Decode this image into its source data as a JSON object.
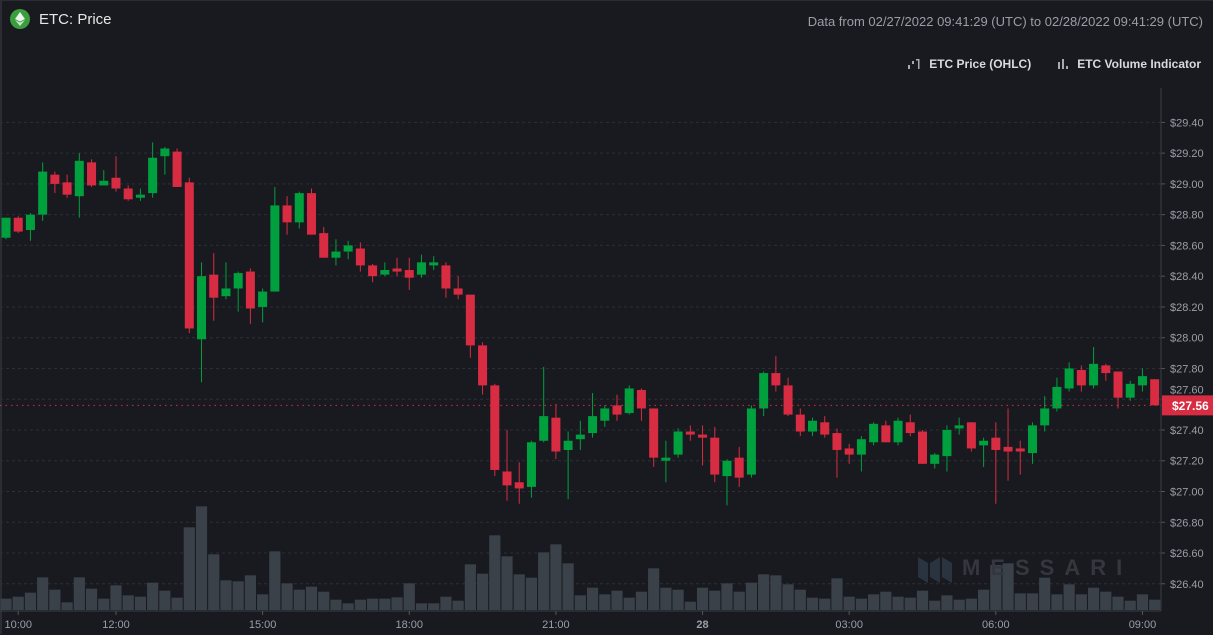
{
  "header": {
    "title": "ETC: Price",
    "range_text": "Data from 02/27/2022 09:41:29 (UTC) to 02/28/2022 09:41:29 (UTC)",
    "coin_icon": "ethereum-classic-icon"
  },
  "legend": [
    {
      "label": "ETC Price (OHLC)",
      "icon": "candlestick-icon"
    },
    {
      "label": "ETC Volume Indicator",
      "icon": "bar-chart-icon"
    }
  ],
  "watermark": "MESSARI",
  "colors": {
    "up": "#00a03e",
    "down": "#d72c41",
    "volume": "#3a4149",
    "background": "#181a20",
    "last_price": "#d72c41"
  },
  "chart_data": {
    "type": "candlestick",
    "title": "ETC: Price",
    "ylim": [
      26.3,
      29.5
    ],
    "yticks": [
      "$29.40",
      "$29.20",
      "$29.00",
      "$28.80",
      "$28.60",
      "$28.40",
      "$28.20",
      "$28.00",
      "$27.80",
      "$27.60",
      "$27.40",
      "$27.20",
      "$27.00",
      "$26.80",
      "$26.60",
      "$26.40"
    ],
    "xticks": [
      {
        "label": "10:00",
        "t": "10:00"
      },
      {
        "label": "12:00",
        "t": "12:00"
      },
      {
        "label": "15:00",
        "t": "15:00"
      },
      {
        "label": "18:00",
        "t": "18:00"
      },
      {
        "label": "21:00",
        "t": "21:00"
      },
      {
        "label": "28",
        "t": "00:00"
      },
      {
        "label": "03:00",
        "t": "03:00"
      },
      {
        "label": "06:00",
        "t": "06:00"
      },
      {
        "label": "09:00",
        "t": "09:00"
      }
    ],
    "grid": true,
    "last_price": "$27.56",
    "volume_units": "relative",
    "candles_fields": [
      "time",
      "open",
      "high",
      "low",
      "close",
      "volume"
    ],
    "candles": [
      [
        "09:45",
        28.65,
        28.78,
        28.64,
        28.78,
        34
      ],
      [
        "10:00",
        28.78,
        28.79,
        28.68,
        28.69,
        40
      ],
      [
        "10:15",
        28.7,
        28.81,
        28.63,
        28.8,
        52
      ],
      [
        "10:30",
        28.8,
        29.14,
        28.76,
        29.08,
        98
      ],
      [
        "10:45",
        29.06,
        29.08,
        28.94,
        29.0,
        61
      ],
      [
        "11:00",
        29.01,
        29.06,
        28.91,
        28.93,
        23
      ],
      [
        "11:15",
        28.92,
        29.2,
        28.78,
        29.15,
        98
      ],
      [
        "11:30",
        29.14,
        29.16,
        28.98,
        28.99,
        64
      ],
      [
        "11:45",
        28.99,
        29.09,
        28.99,
        29.02,
        34
      ],
      [
        "12:00",
        29.04,
        29.18,
        28.95,
        28.97,
        74
      ],
      [
        "12:15",
        28.97,
        28.99,
        28.89,
        28.9,
        44
      ],
      [
        "12:30",
        28.91,
        28.97,
        28.89,
        28.93,
        40
      ],
      [
        "12:45",
        28.94,
        29.27,
        28.91,
        29.17,
        82
      ],
      [
        "13:00",
        29.18,
        29.24,
        29.06,
        29.23,
        58
      ],
      [
        "13:15",
        29.21,
        29.23,
        28.98,
        28.98,
        37
      ],
      [
        "13:30",
        29.01,
        29.04,
        28.03,
        28.06,
        248
      ],
      [
        "13:45",
        27.99,
        28.49,
        27.71,
        28.4,
        311
      ],
      [
        "14:00",
        28.41,
        28.55,
        28.11,
        28.26,
        167
      ],
      [
        "14:15",
        28.27,
        28.49,
        28.25,
        28.32,
        89
      ],
      [
        "14:30",
        28.32,
        28.43,
        28.17,
        28.42,
        86
      ],
      [
        "14:45",
        28.43,
        28.45,
        28.09,
        28.19,
        104
      ],
      [
        "15:00",
        28.2,
        28.32,
        28.1,
        28.3,
        47
      ],
      [
        "15:15",
        28.3,
        28.98,
        28.3,
        28.86,
        176
      ],
      [
        "15:30",
        28.86,
        28.92,
        28.67,
        28.75,
        80
      ],
      [
        "15:45",
        28.75,
        28.95,
        28.71,
        28.94,
        61
      ],
      [
        "16:00",
        28.94,
        28.97,
        28.67,
        28.67,
        70
      ],
      [
        "16:15",
        28.68,
        28.72,
        28.52,
        28.52,
        55
      ],
      [
        "16:30",
        28.52,
        28.64,
        28.47,
        28.56,
        31
      ],
      [
        "16:45",
        28.56,
        28.63,
        28.51,
        28.6,
        20
      ],
      [
        "17:00",
        28.58,
        28.62,
        28.43,
        28.47,
        31
      ],
      [
        "17:15",
        28.47,
        28.48,
        28.36,
        28.4,
        34
      ],
      [
        "17:30",
        28.41,
        28.49,
        28.4,
        28.44,
        34
      ],
      [
        "17:45",
        28.45,
        28.52,
        28.4,
        28.43,
        38
      ],
      [
        "18:00",
        28.44,
        28.52,
        28.31,
        28.39,
        80
      ],
      [
        "18:15",
        28.41,
        28.54,
        28.39,
        28.49,
        20
      ],
      [
        "18:30",
        28.47,
        28.53,
        28.44,
        28.49,
        20
      ],
      [
        "18:45",
        28.47,
        28.49,
        28.26,
        28.32,
        40
      ],
      [
        "19:00",
        28.32,
        28.4,
        28.25,
        28.28,
        28
      ],
      [
        "19:15",
        28.28,
        28.28,
        27.87,
        27.95,
        137
      ],
      [
        "19:30",
        27.95,
        27.97,
        27.63,
        27.69,
        109
      ],
      [
        "19:45",
        27.69,
        27.7,
        27.1,
        27.14,
        224
      ],
      [
        "20:00",
        27.13,
        27.4,
        26.94,
        27.04,
        161
      ],
      [
        "20:15",
        27.06,
        27.19,
        26.92,
        27.02,
        107
      ],
      [
        "20:30",
        27.03,
        27.33,
        26.96,
        27.32,
        97
      ],
      [
        "20:45",
        27.33,
        27.81,
        27.32,
        27.49,
        173
      ],
      [
        "21:00",
        27.48,
        27.57,
        27.21,
        27.26,
        197
      ],
      [
        "21:15",
        27.27,
        27.39,
        26.95,
        27.33,
        140
      ],
      [
        "21:30",
        27.34,
        27.46,
        27.27,
        27.37,
        44
      ],
      [
        "21:45",
        27.38,
        27.64,
        27.35,
        27.49,
        67
      ],
      [
        "22:00",
        27.46,
        27.56,
        27.42,
        27.54,
        47
      ],
      [
        "22:15",
        27.56,
        27.63,
        27.46,
        27.5,
        58
      ],
      [
        "22:30",
        27.51,
        27.69,
        27.5,
        27.67,
        37
      ],
      [
        "22:45",
        27.66,
        27.67,
        27.46,
        27.54,
        55
      ],
      [
        "23:00",
        27.54,
        27.54,
        27.16,
        27.22,
        125
      ],
      [
        "23:15",
        27.2,
        27.33,
        27.06,
        27.22,
        67
      ],
      [
        "23:30",
        27.24,
        27.41,
        27.22,
        27.39,
        61
      ],
      [
        "23:45",
        27.39,
        27.43,
        27.33,
        27.37,
        25
      ],
      [
        "00:00",
        27.37,
        27.43,
        27.17,
        27.35,
        67
      ],
      [
        "00:15",
        27.35,
        27.42,
        27.06,
        27.11,
        58
      ],
      [
        "00:30",
        27.1,
        27.21,
        26.91,
        27.2,
        80
      ],
      [
        "00:45",
        27.22,
        27.29,
        27.03,
        27.09,
        55
      ],
      [
        "01:00",
        27.11,
        27.56,
        27.09,
        27.54,
        82
      ],
      [
        "01:15",
        27.54,
        27.78,
        27.49,
        27.77,
        107
      ],
      [
        "01:30",
        27.77,
        27.88,
        27.65,
        27.69,
        104
      ],
      [
        "01:45",
        27.69,
        27.74,
        27.49,
        27.5,
        77
      ],
      [
        "02:00",
        27.5,
        27.54,
        27.36,
        27.39,
        61
      ],
      [
        "02:15",
        27.39,
        27.48,
        27.36,
        27.46,
        37
      ],
      [
        "02:30",
        27.45,
        27.49,
        27.35,
        27.37,
        34
      ],
      [
        "02:45",
        27.38,
        27.41,
        27.09,
        27.27,
        95
      ],
      [
        "03:00",
        27.28,
        27.31,
        27.18,
        27.24,
        40
      ],
      [
        "03:15",
        27.24,
        27.36,
        27.13,
        27.34,
        34
      ],
      [
        "03:30",
        27.32,
        27.45,
        27.3,
        27.44,
        47
      ],
      [
        "03:45",
        27.43,
        27.46,
        27.32,
        27.32,
        55
      ],
      [
        "04:00",
        27.32,
        27.48,
        27.3,
        27.46,
        40
      ],
      [
        "04:15",
        27.45,
        27.5,
        27.36,
        27.38,
        37
      ],
      [
        "04:30",
        27.39,
        27.4,
        27.18,
        27.18,
        58
      ],
      [
        "04:45",
        27.18,
        27.25,
        27.15,
        27.24,
        28
      ],
      [
        "05:00",
        27.23,
        27.43,
        27.13,
        27.4,
        44
      ],
      [
        "05:15",
        27.41,
        27.48,
        27.37,
        27.43,
        31
      ],
      [
        "05:30",
        27.45,
        27.45,
        27.26,
        27.28,
        34
      ],
      [
        "05:45",
        27.3,
        27.35,
        27.16,
        27.33,
        61
      ],
      [
        "06:00",
        27.35,
        27.45,
        26.92,
        27.27,
        135
      ],
      [
        "06:15",
        27.29,
        27.54,
        27.07,
        27.26,
        140
      ],
      [
        "06:30",
        27.28,
        27.33,
        27.11,
        27.26,
        50
      ],
      [
        "06:45",
        27.25,
        27.45,
        27.18,
        27.43,
        50
      ],
      [
        "07:00",
        27.43,
        27.62,
        27.39,
        27.54,
        97
      ],
      [
        "07:15",
        27.54,
        27.74,
        27.52,
        27.68,
        47
      ],
      [
        "07:30",
        27.67,
        27.84,
        27.65,
        27.8,
        77
      ],
      [
        "07:45",
        27.79,
        27.82,
        27.65,
        27.69,
        47
      ],
      [
        "08:00",
        27.69,
        27.94,
        27.67,
        27.83,
        67
      ],
      [
        "08:15",
        27.82,
        27.83,
        27.72,
        27.77,
        55
      ],
      [
        "08:30",
        27.78,
        27.78,
        27.54,
        27.61,
        40
      ],
      [
        "08:45",
        27.61,
        27.72,
        27.59,
        27.7,
        28
      ],
      [
        "09:00",
        27.69,
        27.8,
        27.65,
        27.75,
        47
      ],
      [
        "09:15",
        27.73,
        27.73,
        27.56,
        27.56,
        31
      ]
    ]
  }
}
